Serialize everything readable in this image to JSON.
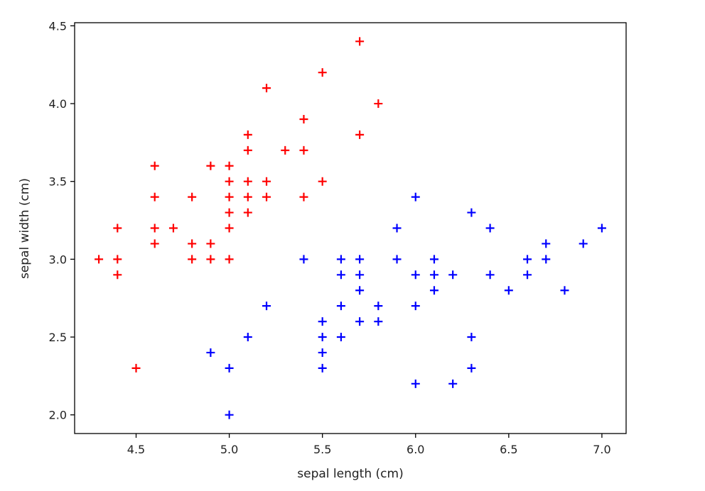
{
  "chart_data": {
    "type": "scatter",
    "xlabel": "sepal length (cm)",
    "ylabel": "sepal width (cm)",
    "xlim": [
      4.17,
      7.13
    ],
    "ylim": [
      1.88,
      4.52
    ],
    "xticks": [
      "4.5",
      "5.0",
      "5.5",
      "6.0",
      "6.5",
      "7.0"
    ],
    "yticks": [
      "2.0",
      "2.5",
      "3.0",
      "3.5",
      "4.0",
      "4.5"
    ],
    "grid": false,
    "marker": "+",
    "series": [
      {
        "color": "#ff0000",
        "points": [
          [
            4.3,
            3.0
          ],
          [
            4.4,
            2.9
          ],
          [
            4.4,
            3.0
          ],
          [
            4.4,
            3.2
          ],
          [
            4.5,
            2.3
          ],
          [
            4.6,
            3.1
          ],
          [
            4.6,
            3.2
          ],
          [
            4.6,
            3.4
          ],
          [
            4.6,
            3.6
          ],
          [
            4.7,
            3.2
          ],
          [
            4.8,
            3.0
          ],
          [
            4.8,
            3.1
          ],
          [
            4.8,
            3.4
          ],
          [
            4.9,
            3.0
          ],
          [
            4.9,
            3.1
          ],
          [
            4.9,
            3.6
          ],
          [
            5.0,
            3.0
          ],
          [
            5.0,
            3.2
          ],
          [
            5.0,
            3.3
          ],
          [
            5.0,
            3.4
          ],
          [
            5.0,
            3.5
          ],
          [
            5.0,
            3.6
          ],
          [
            5.1,
            3.3
          ],
          [
            5.1,
            3.4
          ],
          [
            5.1,
            3.5
          ],
          [
            5.1,
            3.7
          ],
          [
            5.1,
            3.8
          ],
          [
            5.2,
            3.4
          ],
          [
            5.2,
            3.5
          ],
          [
            5.2,
            4.1
          ],
          [
            5.3,
            3.7
          ],
          [
            5.4,
            3.4
          ],
          [
            5.4,
            3.7
          ],
          [
            5.4,
            3.9
          ],
          [
            5.5,
            3.5
          ],
          [
            5.5,
            4.2
          ],
          [
            5.7,
            3.8
          ],
          [
            5.7,
            4.4
          ],
          [
            5.8,
            4.0
          ]
        ]
      },
      {
        "color": "#0000ff",
        "points": [
          [
            4.9,
            2.4
          ],
          [
            5.0,
            2.0
          ],
          [
            5.0,
            2.3
          ],
          [
            5.1,
            2.5
          ],
          [
            5.2,
            2.7
          ],
          [
            5.4,
            3.0
          ],
          [
            5.5,
            2.3
          ],
          [
            5.5,
            2.4
          ],
          [
            5.5,
            2.5
          ],
          [
            5.5,
            2.6
          ],
          [
            5.6,
            2.5
          ],
          [
            5.6,
            2.7
          ],
          [
            5.6,
            2.9
          ],
          [
            5.6,
            3.0
          ],
          [
            5.7,
            2.6
          ],
          [
            5.7,
            2.8
          ],
          [
            5.7,
            2.9
          ],
          [
            5.7,
            3.0
          ],
          [
            5.8,
            2.6
          ],
          [
            5.8,
            2.7
          ],
          [
            5.9,
            3.0
          ],
          [
            5.9,
            3.2
          ],
          [
            6.0,
            2.2
          ],
          [
            6.0,
            2.7
          ],
          [
            6.0,
            2.9
          ],
          [
            6.0,
            3.4
          ],
          [
            6.1,
            2.8
          ],
          [
            6.1,
            2.9
          ],
          [
            6.1,
            3.0
          ],
          [
            6.2,
            2.2
          ],
          [
            6.2,
            2.9
          ],
          [
            6.3,
            2.3
          ],
          [
            6.3,
            2.5
          ],
          [
            6.3,
            3.3
          ],
          [
            6.4,
            2.9
          ],
          [
            6.4,
            3.2
          ],
          [
            6.5,
            2.8
          ],
          [
            6.6,
            2.9
          ],
          [
            6.6,
            3.0
          ],
          [
            6.7,
            3.0
          ],
          [
            6.7,
            3.1
          ],
          [
            6.8,
            2.8
          ],
          [
            6.9,
            3.1
          ],
          [
            7.0,
            3.2
          ]
        ]
      }
    ]
  }
}
